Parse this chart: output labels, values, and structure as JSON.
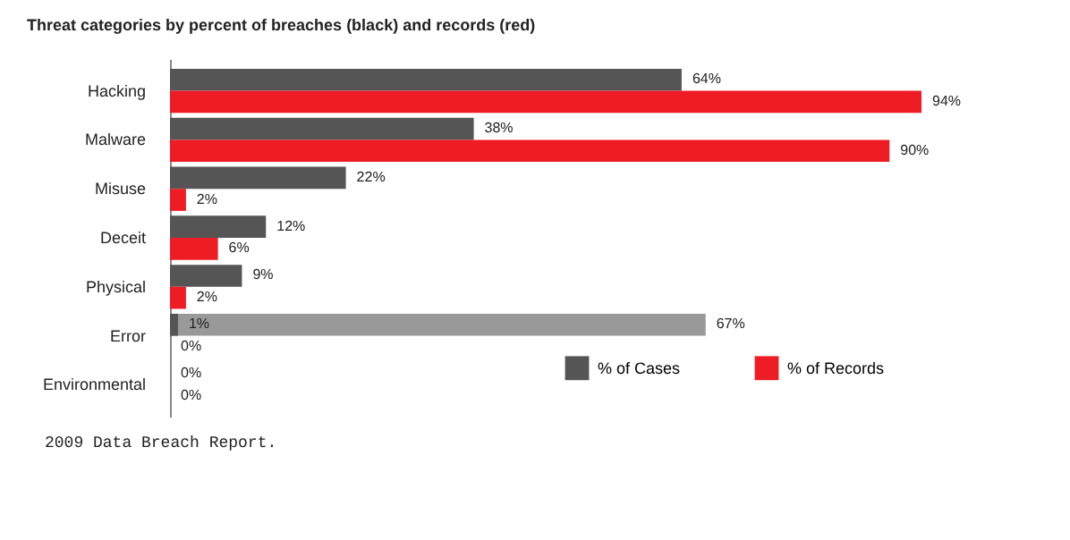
{
  "chart_data": {
    "type": "bar",
    "orientation": "horizontal",
    "title": "Threat categories by percent of breaches (black) and records (red)",
    "categories": [
      "Hacking",
      "Malware",
      "Misuse",
      "Deceit",
      "Physical",
      "Error",
      "Environmental"
    ],
    "series": [
      {
        "name": "% of Cases",
        "color": "#555555",
        "values": [
          64,
          38,
          22,
          12,
          9,
          1,
          0
        ],
        "value_labels": [
          "64%",
          "38%",
          "22%",
          "12%",
          "9%",
          "1%",
          "0%"
        ]
      },
      {
        "name": "% of Records",
        "color": "#ee1c25",
        "values": [
          94,
          90,
          2,
          6,
          2,
          0,
          0
        ],
        "value_labels": [
          "94%",
          "90%",
          "2%",
          "6%",
          "2%",
          "0%",
          "0%"
        ]
      },
      {
        "color": "#999999",
        "values": [
          null,
          null,
          null,
          null,
          null,
          67,
          null
        ],
        "value_labels": [
          null,
          null,
          null,
          null,
          null,
          "67%",
          null
        ]
      }
    ],
    "legend": "bottom right",
    "grid": false,
    "annotations": [
      "2009 Data Breach Report."
    ]
  }
}
